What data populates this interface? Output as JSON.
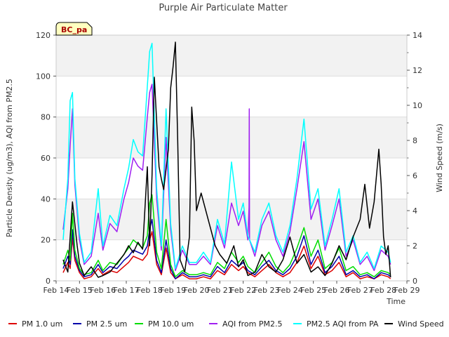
{
  "chart_data": {
    "type": "line",
    "title": "Purple Air Particulate Matter",
    "badge": "BC_pa",
    "xlabel": "Time",
    "ylabel": "Particle Density (ug/m3), AQI from PM2.5",
    "y2label": "Wind Speed (m/s)",
    "xlim": [
      14,
      29
    ],
    "ylim": [
      0,
      120
    ],
    "y2lim": [
      0,
      14
    ],
    "x_ticks": [
      {
        "value": 14,
        "label": "Feb 14"
      },
      {
        "value": 15,
        "label": "Feb 15"
      },
      {
        "value": 16,
        "label": "Feb 16"
      },
      {
        "value": 17,
        "label": "Feb 17"
      },
      {
        "value": 18,
        "label": "Feb 18"
      },
      {
        "value": 19,
        "label": "Feb 19"
      },
      {
        "value": 20,
        "label": "Feb 20"
      },
      {
        "value": 21,
        "label": "Feb 21"
      },
      {
        "value": 22,
        "label": "Feb 22"
      },
      {
        "value": 23,
        "label": "Feb 23"
      },
      {
        "value": 24,
        "label": "Feb 24"
      },
      {
        "value": 25,
        "label": "Feb 25"
      },
      {
        "value": 26,
        "label": "Feb 26"
      },
      {
        "value": 27,
        "label": "Feb 27"
      },
      {
        "value": 28,
        "label": "Feb 28"
      },
      {
        "value": 29,
        "label": "Feb 29"
      }
    ],
    "y_ticks": [
      0,
      20,
      40,
      60,
      80,
      100,
      120
    ],
    "y2_ticks": [
      0,
      2,
      4,
      6,
      8,
      10,
      12,
      14
    ],
    "series": [
      {
        "name": "PM 1.0 um",
        "color": "#dd0000",
        "axis": "left",
        "x": [
          14.3,
          14.5,
          14.6,
          14.7,
          14.8,
          15.0,
          15.2,
          15.5,
          15.8,
          16.0,
          16.3,
          16.6,
          16.9,
          17.1,
          17.3,
          17.5,
          17.7,
          17.9,
          18.0,
          18.1,
          18.3,
          18.5,
          18.7,
          18.9,
          19.1,
          19.4,
          19.7,
          20.0,
          20.3,
          20.6,
          20.9,
          21.2,
          21.5,
          21.8,
          22.0,
          22.2,
          22.5,
          22.8,
          23.1,
          23.4,
          23.7,
          24.0,
          24.3,
          24.6,
          24.9,
          25.2,
          25.5,
          25.8,
          26.1,
          26.4,
          26.7,
          27.0,
          27.3,
          27.6,
          27.9,
          28.2,
          28.3
        ],
        "y": [
          4,
          9,
          6,
          21,
          10,
          4,
          1,
          2,
          6,
          3,
          5,
          4,
          7,
          9,
          12,
          11,
          10,
          13,
          20,
          24,
          8,
          3,
          16,
          4,
          1,
          3,
          1,
          1,
          2,
          1,
          5,
          3,
          8,
          5,
          7,
          4,
          2,
          5,
          8,
          4,
          2,
          4,
          9,
          17,
          6,
          12,
          3,
          5,
          9,
          2,
          4,
          1,
          2,
          1,
          3,
          2,
          1
        ]
      },
      {
        "name": "PM 2.5 um",
        "color": "#0000aa",
        "axis": "left",
        "x": [
          14.3,
          14.5,
          14.6,
          14.7,
          14.8,
          15.0,
          15.2,
          15.5,
          15.8,
          16.0,
          16.3,
          16.6,
          16.9,
          17.1,
          17.3,
          17.5,
          17.7,
          17.9,
          18.0,
          18.1,
          18.3,
          18.5,
          18.7,
          18.9,
          19.1,
          19.4,
          19.7,
          20.0,
          20.3,
          20.6,
          20.9,
          21.2,
          21.5,
          21.8,
          22.0,
          22.2,
          22.5,
          22.8,
          23.1,
          23.4,
          23.7,
          24.0,
          24.3,
          24.6,
          24.9,
          25.2,
          25.5,
          25.8,
          26.1,
          26.4,
          26.7,
          27.0,
          27.3,
          27.6,
          27.9,
          28.2,
          28.3
        ],
        "y": [
          6,
          12,
          8,
          25,
          12,
          5,
          2,
          3,
          8,
          4,
          7,
          6,
          10,
          12,
          15,
          14,
          13,
          17,
          25,
          30,
          10,
          4,
          20,
          6,
          1,
          4,
          2,
          2,
          3,
          2,
          7,
          4,
          10,
          7,
          9,
          5,
          3,
          7,
          10,
          5,
          3,
          6,
          12,
          22,
          8,
          15,
          4,
          7,
          12,
          3,
          5,
          2,
          3,
          1,
          4,
          3,
          2
        ]
      },
      {
        "name": "PM 10.0 um",
        "color": "#00dd00",
        "axis": "left",
        "x": [
          14.3,
          14.5,
          14.6,
          14.7,
          14.8,
          15.0,
          15.2,
          15.5,
          15.8,
          16.0,
          16.3,
          16.6,
          16.9,
          17.1,
          17.3,
          17.5,
          17.7,
          17.9,
          18.0,
          18.1,
          18.3,
          18.5,
          18.7,
          18.9,
          19.1,
          19.4,
          19.7,
          20.0,
          20.3,
          20.6,
          20.9,
          21.2,
          21.5,
          21.8,
          22.0,
          22.2,
          22.5,
          22.8,
          23.1,
          23.4,
          23.7,
          24.0,
          24.3,
          24.6,
          24.9,
          25.2,
          25.5,
          25.8,
          26.1,
          26.4,
          26.7,
          27.0,
          27.3,
          27.6,
          27.9,
          28.2,
          28.3
        ],
        "y": [
          8,
          15,
          10,
          33,
          15,
          6,
          3,
          4,
          10,
          5,
          9,
          8,
          13,
          16,
          20,
          18,
          16,
          22,
          38,
          42,
          14,
          6,
          30,
          8,
          2,
          5,
          3,
          3,
          4,
          3,
          9,
          6,
          14,
          9,
          12,
          7,
          4,
          9,
          14,
          7,
          4,
          8,
          16,
          26,
          12,
          20,
          6,
          9,
          16,
          5,
          7,
          3,
          4,
          2,
          5,
          4,
          3
        ]
      },
      {
        "name": "AQI from PM2.5",
        "color": "#a020f0",
        "axis": "left",
        "x": [
          14.3,
          14.5,
          14.6,
          14.7,
          14.8,
          15.0,
          15.2,
          15.5,
          15.8,
          16.0,
          16.3,
          16.6,
          16.9,
          17.1,
          17.3,
          17.5,
          17.7,
          17.9,
          18.0,
          18.1,
          18.3,
          18.5,
          18.7,
          18.9,
          19.1,
          19.4,
          19.7,
          20.0,
          20.3,
          20.6,
          20.9,
          21.2,
          21.5,
          21.8,
          22.0,
          22.2,
          22.25,
          22.26,
          22.27,
          22.5,
          22.8,
          23.1,
          23.4,
          23.7,
          24.0,
          24.3,
          24.6,
          24.9,
          25.2,
          25.5,
          25.8,
          26.1,
          26.4,
          26.7,
          27.0,
          27.3,
          27.6,
          27.9,
          28.2,
          28.3
        ],
        "y": [
          25,
          45,
          66,
          84,
          47,
          20,
          8,
          12,
          33,
          15,
          28,
          24,
          40,
          48,
          60,
          56,
          54,
          80,
          92,
          96,
          40,
          15,
          70,
          25,
          5,
          15,
          8,
          8,
          12,
          8,
          27,
          16,
          38,
          27,
          34,
          20,
          36,
          84,
          20,
          12,
          27,
          34,
          20,
          12,
          24,
          45,
          68,
          30,
          40,
          15,
          27,
          40,
          12,
          20,
          8,
          12,
          5,
          15,
          12,
          8
        ]
      },
      {
        "name": "PM2.5 AQI from PA",
        "color": "#00ffff",
        "axis": "left",
        "x": [
          14.3,
          14.5,
          14.6,
          14.7,
          14.8,
          15.0,
          15.2,
          15.5,
          15.8,
          16.0,
          16.3,
          16.6,
          16.9,
          17.1,
          17.3,
          17.5,
          17.7,
          17.9,
          18.0,
          18.1,
          18.3,
          18.5,
          18.7,
          18.9,
          19.1,
          19.4,
          19.7,
          20.0,
          20.3,
          20.6,
          20.9,
          21.2,
          21.5,
          21.8,
          22.0,
          22.2,
          22.5,
          22.8,
          23.1,
          23.4,
          23.7,
          24.0,
          24.3,
          24.6,
          24.9,
          25.2,
          25.5,
          25.8,
          26.1,
          26.4,
          26.7,
          27.0,
          27.3,
          27.6,
          27.9,
          28.2,
          28.3
        ],
        "y": [
          20,
          50,
          88,
          92,
          50,
          23,
          9,
          14,
          45,
          17,
          32,
          27,
          45,
          55,
          69,
          63,
          61,
          95,
          112,
          116,
          45,
          17,
          84,
          28,
          6,
          17,
          9,
          9,
          14,
          9,
          30,
          18,
          58,
          30,
          38,
          22,
          14,
          30,
          38,
          22,
          14,
          27,
          50,
          79,
          35,
          45,
          17,
          30,
          45,
          14,
          22,
          9,
          14,
          6,
          17,
          14,
          9
        ]
      },
      {
        "name": "Wind Speed",
        "color": "#000000",
        "axis": "right",
        "x": [
          14.3,
          14.5,
          14.7,
          14.9,
          15.0,
          15.2,
          15.5,
          15.8,
          16.0,
          16.3,
          16.6,
          16.9,
          17.1,
          17.3,
          17.5,
          17.7,
          17.9,
          18.0,
          18.1,
          18.2,
          18.4,
          18.5,
          18.6,
          18.8,
          18.9,
          19.0,
          19.1,
          19.2,
          19.3,
          19.5,
          19.7,
          19.8,
          19.9,
          20.0,
          20.2,
          20.5,
          20.8,
          21.0,
          21.3,
          21.6,
          21.8,
          22.0,
          22.2,
          22.5,
          22.8,
          23.1,
          23.4,
          23.7,
          24.0,
          24.3,
          24.6,
          24.9,
          25.2,
          25.5,
          25.8,
          26.1,
          26.4,
          26.7,
          27.0,
          27.2,
          27.4,
          27.6,
          27.8,
          27.9,
          28.0,
          28.1,
          28.2,
          28.3
        ],
        "y": [
          1.2,
          0.5,
          4.5,
          2.0,
          1.0,
          0.3,
          0.8,
          0.2,
          0.3,
          0.5,
          1.0,
          1.5,
          2.0,
          1.6,
          2.2,
          1.8,
          6.5,
          2.0,
          6.0,
          11.6,
          6.5,
          5.8,
          5.2,
          7.5,
          11.0,
          12.2,
          13.6,
          8.0,
          1.2,
          0.5,
          2.5,
          9.9,
          8.0,
          4.0,
          5.0,
          3.5,
          2.0,
          1.5,
          1.0,
          2.0,
          0.8,
          1.2,
          0.3,
          0.5,
          1.5,
          0.8,
          0.5,
          1.2,
          2.5,
          1.0,
          1.5,
          0.5,
          0.8,
          0.3,
          1.0,
          2.0,
          1.2,
          2.5,
          3.5,
          5.5,
          3.0,
          4.5,
          7.5,
          5.5,
          2.5,
          1.5,
          2.0,
          0.2
        ]
      }
    ]
  }
}
